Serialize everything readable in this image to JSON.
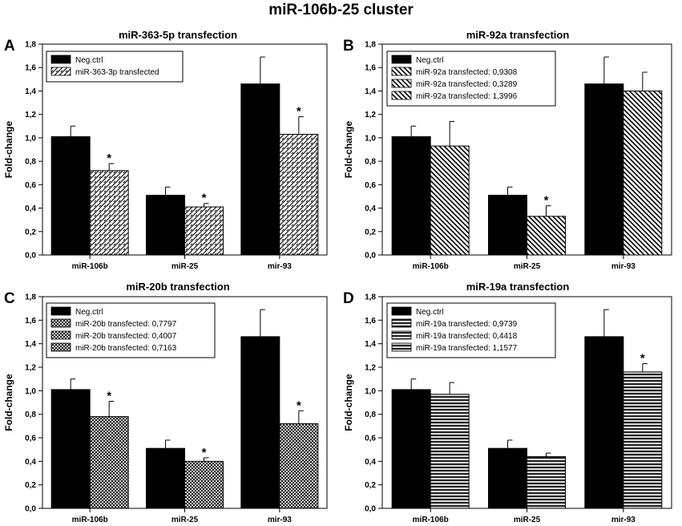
{
  "figure_title": "miR-106b-25 cluster",
  "chart_data": [
    {
      "type": "bar",
      "panel_letter": "A",
      "title": "miR-363-5p transfection",
      "xlabel": "",
      "ylabel": "Fold-change",
      "ylim": [
        0,
        1.8
      ],
      "yticks": [
        "0,0",
        "0,2",
        "0,4",
        "0,6",
        "0,8",
        "1,0",
        "1,2",
        "1,4",
        "1,6",
        "1,8"
      ],
      "categories": [
        "miR-106b",
        "miR-25",
        "mir-93"
      ],
      "series": [
        {
          "name": "Neg.ctrl",
          "pattern": "solid",
          "values": [
            1.01,
            0.51,
            1.46
          ],
          "errors": [
            0.09,
            0.07,
            0.23
          ],
          "stars": [
            false,
            false,
            false
          ]
        },
        {
          "name": "miR-363-3p transfected",
          "pattern": "diag",
          "values": [
            0.72,
            0.41,
            1.03
          ],
          "errors": [
            0.06,
            0.03,
            0.15
          ],
          "stars": [
            true,
            true,
            true
          ]
        }
      ],
      "legend": [
        "Neg.ctrl",
        "miR-363-3p transfected"
      ]
    },
    {
      "type": "bar",
      "panel_letter": "B",
      "title": "miR-92a transfection",
      "xlabel": "",
      "ylabel": "Fold-change",
      "ylim": [
        0,
        1.8
      ],
      "yticks": [
        "0,0",
        "0,2",
        "0,4",
        "0,6",
        "0,8",
        "1,0",
        "1,2",
        "1,4",
        "1,6",
        "1,8"
      ],
      "categories": [
        "miR-106b",
        "miR-25",
        "mir-93"
      ],
      "series": [
        {
          "name": "Neg.ctrl",
          "pattern": "solid",
          "values": [
            1.01,
            0.51,
            1.46
          ],
          "errors": [
            0.09,
            0.07,
            0.23
          ],
          "stars": [
            false,
            false,
            false
          ]
        },
        {
          "name": "miR-92a transfected",
          "pattern": "backdiag",
          "values": [
            0.93,
            0.33,
            1.4
          ],
          "errors": [
            0.21,
            0.09,
            0.16
          ],
          "stars": [
            false,
            true,
            false
          ]
        }
      ],
      "legend": [
        "Neg.ctrl",
        "miR-92a transfected: 0,9308",
        "miR-92a transfected: 0,3289",
        "miR-92a transfected: 1,3996"
      ]
    },
    {
      "type": "bar",
      "panel_letter": "C",
      "title": "miR-20b transfection",
      "xlabel": "",
      "ylabel": "Fold-change",
      "ylim": [
        0,
        1.8
      ],
      "yticks": [
        "0,0",
        "0,2",
        "0,4",
        "0,6",
        "0,8",
        "1,0",
        "1,2",
        "1,4",
        "1,6",
        "1,8"
      ],
      "categories": [
        "miR-106b",
        "miR-25",
        "mir-93"
      ],
      "series": [
        {
          "name": "Neg.ctrl",
          "pattern": "solid",
          "values": [
            1.01,
            0.51,
            1.46
          ],
          "errors": [
            0.09,
            0.07,
            0.23
          ],
          "stars": [
            false,
            false,
            false
          ]
        },
        {
          "name": "miR-20b transfected",
          "pattern": "cross",
          "values": [
            0.78,
            0.4,
            0.72
          ],
          "errors": [
            0.13,
            0.03,
            0.11
          ],
          "stars": [
            true,
            true,
            true
          ]
        }
      ],
      "legend": [
        "Neg.ctrl",
        "miR-20b transfected: 0,7797",
        "miR-20b transfected: 0,4007",
        "miR-20b transfected: 0,7163"
      ]
    },
    {
      "type": "bar",
      "panel_letter": "D",
      "title": "miR-19a transfection",
      "xlabel": "",
      "ylabel": "Fold-change",
      "ylim": [
        0,
        1.8
      ],
      "yticks": [
        "0,0",
        "0,2",
        "0,4",
        "0,6",
        "0,8",
        "1,0",
        "1,2",
        "1,4",
        "1,6",
        "1,8"
      ],
      "categories": [
        "miR-106b",
        "miR-25",
        "mir-93"
      ],
      "series": [
        {
          "name": "Neg.ctrl",
          "pattern": "solid",
          "values": [
            1.01,
            0.51,
            1.46
          ],
          "errors": [
            0.09,
            0.07,
            0.23
          ],
          "stars": [
            false,
            false,
            false
          ]
        },
        {
          "name": "miR-19a transfected",
          "pattern": "horiz",
          "values": [
            0.97,
            0.44,
            1.16
          ],
          "errors": [
            0.1,
            0.03,
            0.07
          ],
          "stars": [
            false,
            false,
            true
          ]
        }
      ],
      "legend": [
        "Neg.ctrl",
        "miR-19a transfected: 0,9739",
        "miR-19a transfected: 0,4418",
        "miR-19a transfected: 1,1577"
      ]
    }
  ],
  "star_symbol": "*"
}
